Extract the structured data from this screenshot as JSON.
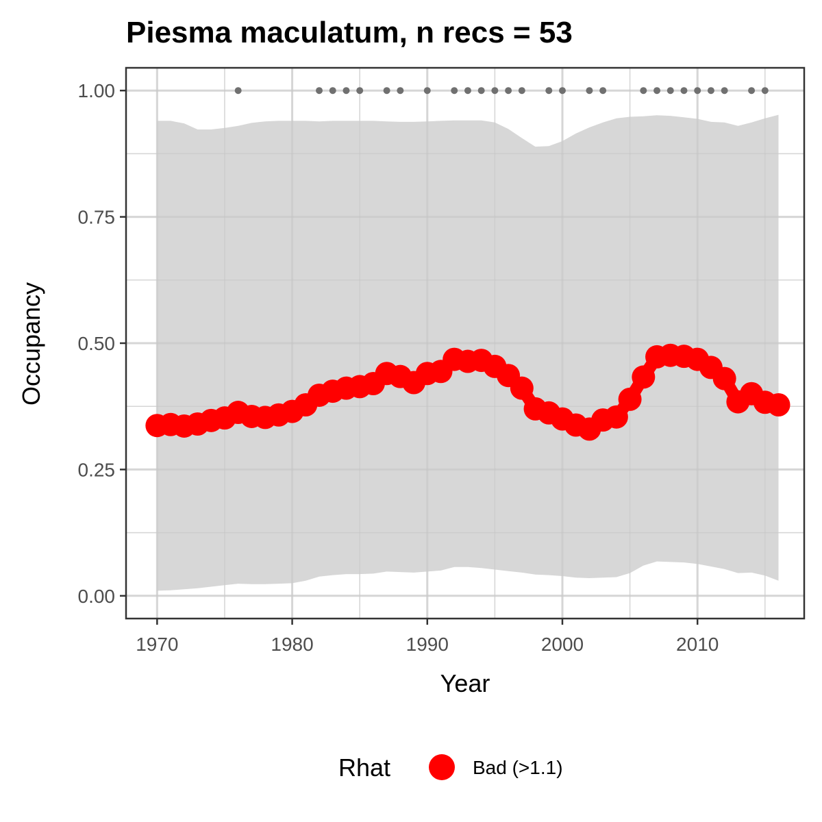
{
  "chart_data": {
    "type": "line",
    "title": "Piesma maculatum, n recs = 53",
    "xlabel": "Year",
    "ylabel": "Occupancy",
    "xlim": [
      1967.7,
      2017.9
    ],
    "ylim": [
      -0.045,
      1.045
    ],
    "x_ticks": [
      1970,
      1980,
      1990,
      2000,
      2010
    ],
    "x_tick_labels": [
      "1970",
      "1980",
      "1990",
      "2000",
      "2010"
    ],
    "y_ticks": [
      0,
      0.25,
      0.5,
      0.75,
      1.0
    ],
    "y_tick_labels": [
      "0.00",
      "0.25",
      "0.50",
      "0.75",
      "1.00"
    ],
    "grid": true,
    "legend_position": "bottom",
    "legend_title": "Rhat",
    "series": [
      {
        "name": "Bad (>1.1)",
        "color": "#ff0000",
        "x": [
          1970,
          1971,
          1972,
          1973,
          1974,
          1975,
          1976,
          1977,
          1978,
          1979,
          1980,
          1981,
          1982,
          1983,
          1984,
          1985,
          1986,
          1987,
          1988,
          1989,
          1990,
          1991,
          1992,
          1993,
          1994,
          1995,
          1996,
          1997,
          1998,
          1999,
          2000,
          2001,
          2002,
          2003,
          2004,
          2005,
          2006,
          2007,
          2008,
          2009,
          2010,
          2011,
          2012,
          2013,
          2014,
          2015,
          2016
        ],
        "values": [
          0.337,
          0.339,
          0.336,
          0.34,
          0.347,
          0.352,
          0.363,
          0.355,
          0.353,
          0.358,
          0.365,
          0.378,
          0.397,
          0.405,
          0.411,
          0.414,
          0.42,
          0.44,
          0.434,
          0.422,
          0.44,
          0.444,
          0.468,
          0.464,
          0.466,
          0.454,
          0.436,
          0.411,
          0.37,
          0.362,
          0.35,
          0.338,
          0.33,
          0.348,
          0.354,
          0.389,
          0.433,
          0.473,
          0.476,
          0.474,
          0.468,
          0.452,
          0.43,
          0.384,
          0.4,
          0.383,
          0.378
        ]
      }
    ],
    "credible_interval": {
      "color": "#d7d7d7",
      "x": [
        1970,
        1971,
        1972,
        1973,
        1974,
        1975,
        1976,
        1977,
        1978,
        1979,
        1980,
        1981,
        1982,
        1983,
        1984,
        1985,
        1986,
        1987,
        1988,
        1989,
        1990,
        1991,
        1992,
        1993,
        1994,
        1995,
        1996,
        1997,
        1998,
        1999,
        2000,
        2001,
        2002,
        2003,
        2004,
        2005,
        2006,
        2007,
        2008,
        2009,
        2010,
        2011,
        2012,
        2013,
        2014,
        2015,
        2016
      ],
      "lower": [
        0.01,
        0.011,
        0.013,
        0.015,
        0.018,
        0.021,
        0.024,
        0.023,
        0.023,
        0.024,
        0.025,
        0.03,
        0.038,
        0.041,
        0.043,
        0.043,
        0.044,
        0.048,
        0.047,
        0.046,
        0.048,
        0.05,
        0.057,
        0.057,
        0.055,
        0.052,
        0.049,
        0.046,
        0.042,
        0.041,
        0.039,
        0.036,
        0.035,
        0.036,
        0.037,
        0.045,
        0.06,
        0.068,
        0.067,
        0.066,
        0.063,
        0.058,
        0.053,
        0.045,
        0.046,
        0.04,
        0.03
      ],
      "upper": [
        0.94,
        0.94,
        0.935,
        0.923,
        0.923,
        0.926,
        0.93,
        0.936,
        0.939,
        0.94,
        0.94,
        0.94,
        0.939,
        0.94,
        0.94,
        0.94,
        0.94,
        0.939,
        0.938,
        0.938,
        0.939,
        0.94,
        0.941,
        0.941,
        0.941,
        0.937,
        0.924,
        0.906,
        0.889,
        0.89,
        0.9,
        0.915,
        0.927,
        0.937,
        0.945,
        0.948,
        0.949,
        0.951,
        0.95,
        0.947,
        0.944,
        0.938,
        0.937,
        0.93,
        0.937,
        0.945,
        0.952
      ]
    },
    "records": {
      "color": "#707070",
      "y": 1.0,
      "years": [
        1976,
        1982,
        1983,
        1984,
        1985,
        1987,
        1988,
        1990,
        1992,
        1993,
        1994,
        1995,
        1996,
        1997,
        1999,
        2000,
        2002,
        2003,
        2006,
        2007,
        2008,
        2009,
        2010,
        2011,
        2012,
        2014,
        2015
      ]
    }
  }
}
